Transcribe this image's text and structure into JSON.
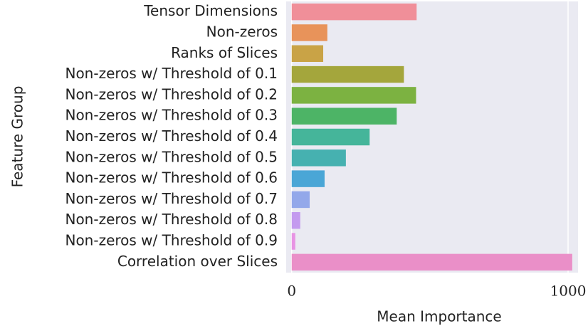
{
  "chart_data": {
    "type": "barh",
    "categories": [
      "Tensor Dimensions",
      "Non-zeros",
      "Ranks of Slices",
      "Non-zeros w/ Threshold of 0.1",
      "Non-zeros w/ Threshold of 0.2",
      "Non-zeros w/ Threshold of 0.3",
      "Non-zeros w/ Threshold of 0.4",
      "Non-zeros w/ Threshold of 0.5",
      "Non-zeros w/ Threshold of 0.6",
      "Non-zeros w/ Threshold of 0.7",
      "Non-zeros w/ Threshold of 0.8",
      "Non-zeros w/ Threshold of 0.9",
      "Correlation over Slices"
    ],
    "values": [
      452,
      129,
      114,
      406,
      450,
      380,
      282,
      196,
      119,
      65,
      31,
      13,
      1015
    ],
    "colors": [
      "#f08f99",
      "#e8935a",
      "#c9a346",
      "#a4a63c",
      "#7cb241",
      "#4db466",
      "#45b59a",
      "#46b1b0",
      "#4aa6d6",
      "#93a8ea",
      "#c49aef",
      "#e894e4",
      "#ea8fc8"
    ],
    "xlabel": "Mean Importance",
    "ylabel": "Feature Group",
    "xlim": [
      -20,
      1036
    ],
    "xticks": [
      0,
      1000
    ],
    "grid": true
  }
}
